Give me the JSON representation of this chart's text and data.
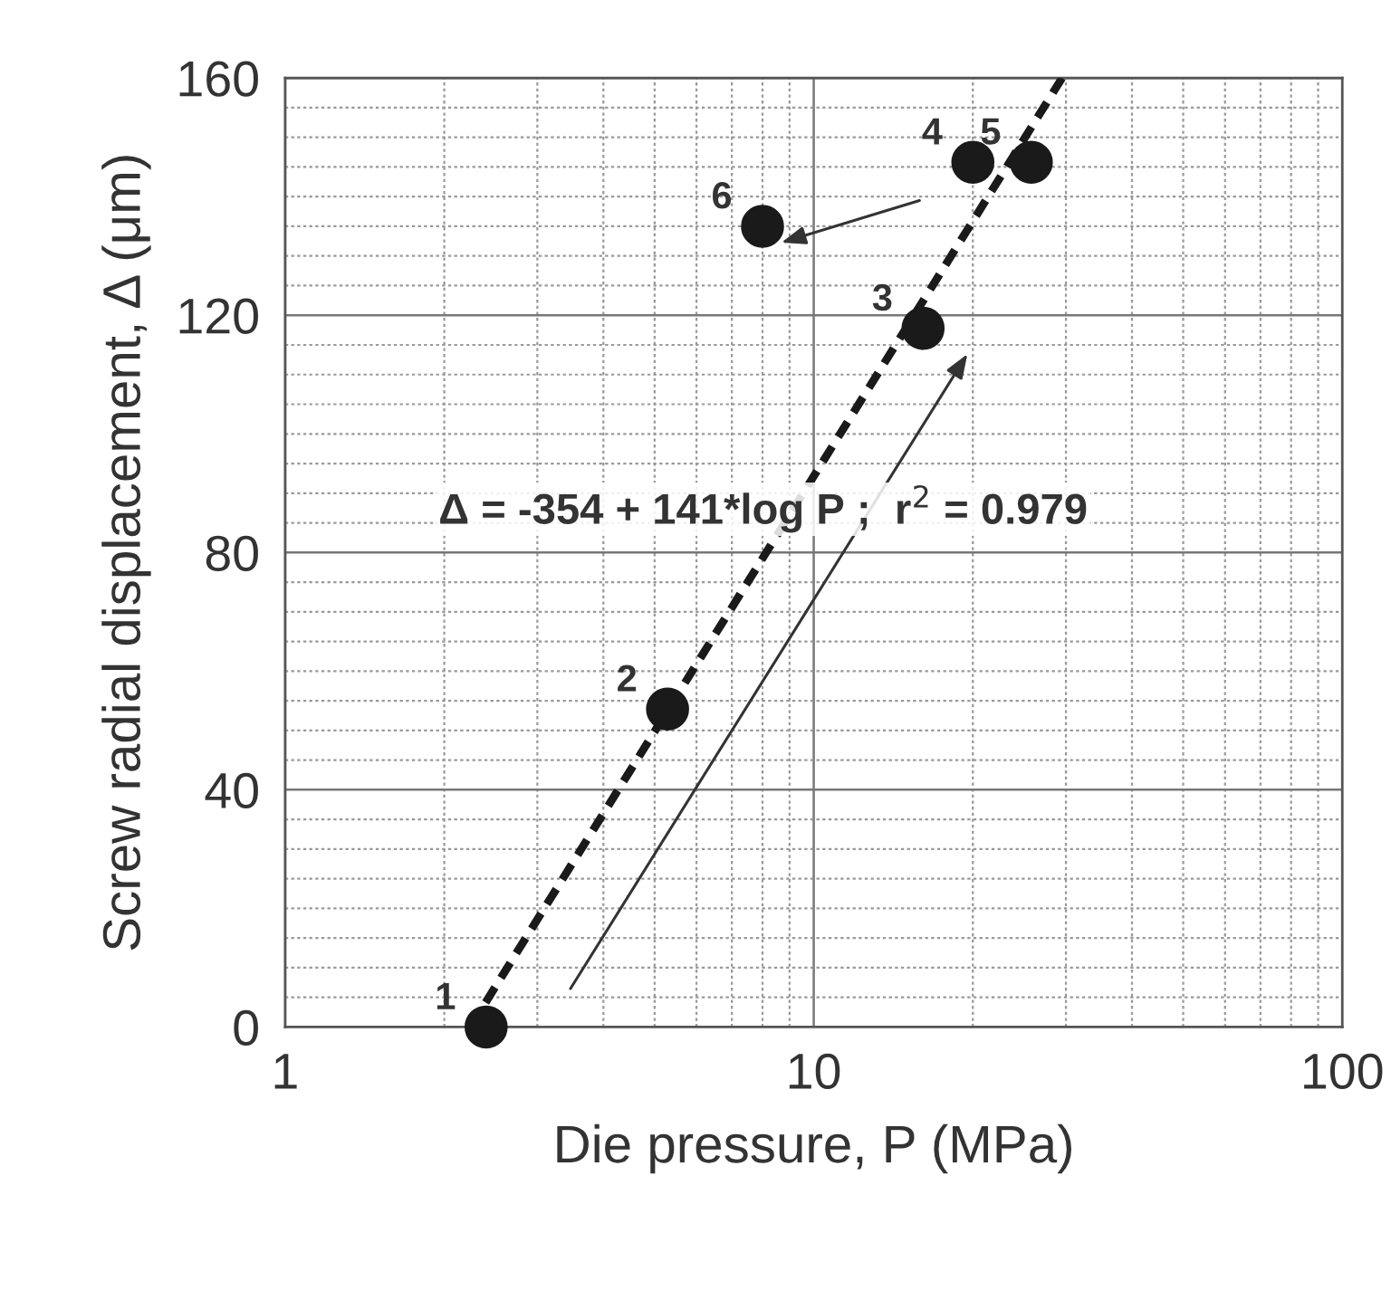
{
  "chart_data": {
    "type": "scatter",
    "xlabel": "Die pressure, P (MPa)",
    "ylabel": "Screw radial displacement, Δ (μm)",
    "log": "x",
    "xlim": [
      1,
      100
    ],
    "xticks": [
      1,
      10,
      100
    ],
    "ylim": [
      0,
      160
    ],
    "yticks": [
      0,
      40,
      80,
      120,
      160
    ],
    "grid": true,
    "series": [
      {
        "color": "#1a1a1a",
        "marker": "circle",
        "x": [
          2.4,
          5.29,
          16.1,
          20.0,
          25.8,
          8.0
        ],
        "values": [
          0,
          53.6,
          117.8,
          145.8,
          145.8,
          135
        ]
      },
      {
        "type": "line",
        "color": "#1a1a1a",
        "line_style": "dashed",
        "marker": "none",
        "x": [
          2.24,
          29.5
        ],
        "values": [
          0,
          160
        ]
      }
    ],
    "annotations": [
      {
        "text": "1",
        "x": 2.4,
        "y": 0
      },
      {
        "text": "2",
        "x": 5.29,
        "y": 53.6
      },
      {
        "text": "3",
        "x": 16.1,
        "y": 117.8
      },
      {
        "text": "4",
        "x": 20.0,
        "y": 145.8
      },
      {
        "text": "5",
        "x": 25.8,
        "y": 145.8
      },
      {
        "text": "6",
        "x": 8.0,
        "y": 135
      },
      "Δ = -354 + 141*log P ;  r$^{2}$ = 0.979"
    ]
  }
}
